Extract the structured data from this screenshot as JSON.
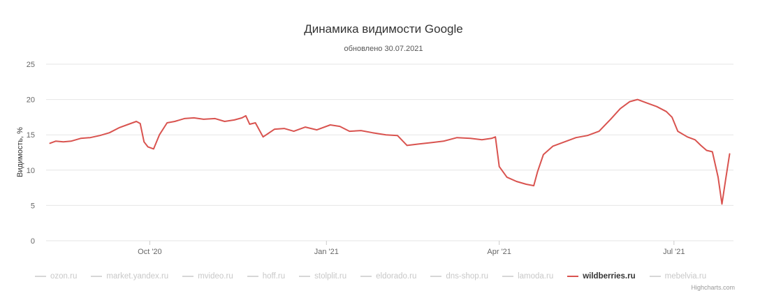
{
  "title": "Динамика видимости Google",
  "subtitle": "обновлено 30.07.2021",
  "credits": "Highcharts.com",
  "chart_data": {
    "type": "line",
    "title": "Динамика видимости Google",
    "subtitle": "обновлено 30.07.2021",
    "ylabel": "Видимость, %",
    "xlabel": "",
    "ylim": [
      0,
      25
    ],
    "y_ticks": [
      "0",
      "5",
      "10",
      "15",
      "20",
      "25"
    ],
    "xlim": [
      "2020-08-08",
      "2021-08-01"
    ],
    "x_ticks": [
      {
        "label": "Oct '20",
        "date": "2020-10-01"
      },
      {
        "label": "Jan '21",
        "date": "2021-01-01"
      },
      {
        "label": "Apr '21",
        "date": "2021-04-01"
      },
      {
        "label": "Jul '21",
        "date": "2021-07-01"
      }
    ],
    "grid": true,
    "legend_position": "bottom",
    "series": [
      {
        "name": "wildberries.ru",
        "color": "#d9534f",
        "x": [
          "2020-08-10",
          "2020-08-13",
          "2020-08-17",
          "2020-08-21",
          "2020-08-26",
          "2020-08-31",
          "2020-09-05",
          "2020-09-10",
          "2020-09-15",
          "2020-09-20",
          "2020-09-24",
          "2020-09-26",
          "2020-09-28",
          "2020-09-30",
          "2020-10-03",
          "2020-10-06",
          "2020-10-10",
          "2020-10-14",
          "2020-10-19",
          "2020-10-24",
          "2020-10-29",
          "2020-11-04",
          "2020-11-09",
          "2020-11-14",
          "2020-11-18",
          "2020-11-20",
          "2020-11-22",
          "2020-11-25",
          "2020-11-29",
          "2020-12-05",
          "2020-12-10",
          "2020-12-15",
          "2020-12-21",
          "2020-12-27",
          "2021-01-03",
          "2021-01-08",
          "2021-01-13",
          "2021-01-19",
          "2021-01-25",
          "2021-02-01",
          "2021-02-07",
          "2021-02-12",
          "2021-02-18",
          "2021-02-25",
          "2021-03-03",
          "2021-03-10",
          "2021-03-17",
          "2021-03-23",
          "2021-03-28",
          "2021-03-30",
          "2021-04-01",
          "2021-04-05",
          "2021-04-10",
          "2021-04-15",
          "2021-04-19",
          "2021-04-21",
          "2021-04-24",
          "2021-04-29",
          "2021-05-05",
          "2021-05-11",
          "2021-05-17",
          "2021-05-23",
          "2021-05-29",
          "2021-06-03",
          "2021-06-08",
          "2021-06-12",
          "2021-06-17",
          "2021-06-22",
          "2021-06-27",
          "2021-06-30",
          "2021-07-03",
          "2021-07-08",
          "2021-07-12",
          "2021-07-15",
          "2021-07-18",
          "2021-07-21",
          "2021-07-24",
          "2021-07-26",
          "2021-07-28",
          "2021-07-30"
        ],
        "y": [
          13.8,
          14.1,
          14.0,
          14.1,
          14.5,
          14.6,
          14.9,
          15.3,
          16.0,
          16.5,
          16.9,
          16.6,
          14.0,
          13.3,
          13.0,
          15.0,
          16.7,
          16.9,
          17.3,
          17.4,
          17.2,
          17.3,
          16.9,
          17.1,
          17.4,
          17.7,
          16.5,
          16.7,
          14.7,
          15.8,
          15.9,
          15.5,
          16.1,
          15.7,
          16.4,
          16.2,
          15.5,
          15.6,
          15.3,
          15.0,
          14.9,
          13.5,
          13.7,
          13.9,
          14.1,
          14.6,
          14.5,
          14.3,
          14.5,
          14.7,
          10.5,
          9.0,
          8.4,
          8.0,
          7.8,
          9.8,
          12.2,
          13.4,
          14.0,
          14.6,
          14.9,
          15.5,
          17.2,
          18.7,
          19.7,
          20.0,
          19.5,
          19.0,
          18.3,
          17.5,
          15.5,
          14.7,
          14.3,
          13.5,
          12.8,
          12.6,
          9.0,
          5.2,
          8.8,
          12.3
        ]
      }
    ],
    "legend": [
      "ozon.ru",
      "market.yandex.ru",
      "mvideo.ru",
      "hoff.ru",
      "stolplit.ru",
      "eldorado.ru",
      "dns-shop.ru",
      "lamoda.ru",
      "wildberries.ru",
      "mebelvia.ru"
    ],
    "legend_active": "wildberries.ru",
    "grid_color": "#e6e6e6",
    "line_color": "#d9534f"
  }
}
